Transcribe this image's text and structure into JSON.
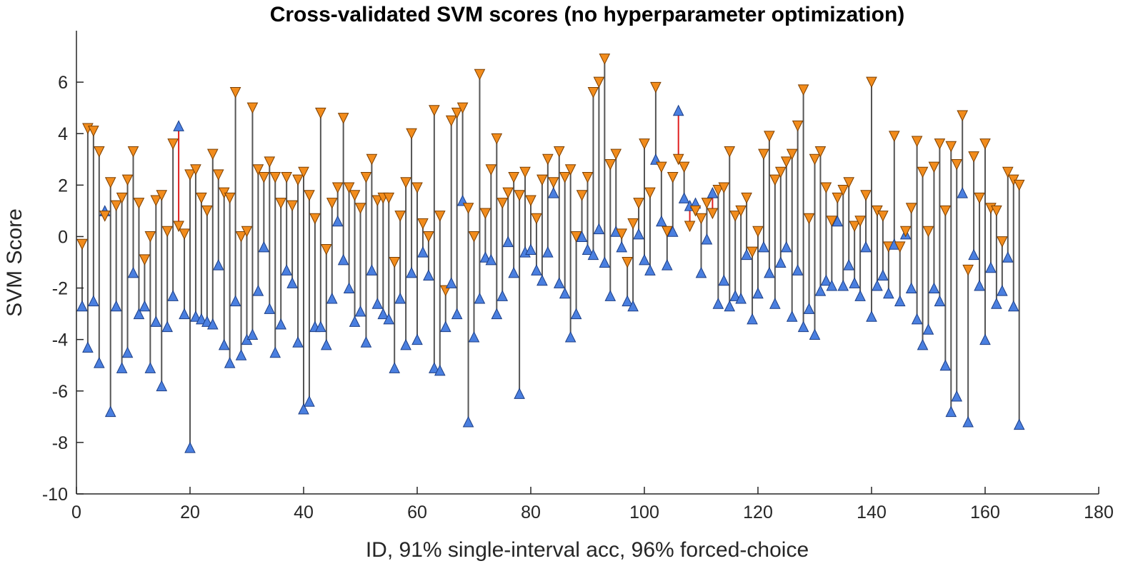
{
  "chart_data": {
    "type": "scatter",
    "title": "Cross-validated SVM scores (no hyperparameter optimization)",
    "xlabel": "ID,  91% single-interval acc,  96% forced-choice",
    "ylabel": "SVM Score",
    "xlim": [
      0,
      180
    ],
    "ylim": [
      -10,
      8
    ],
    "xticks": [
      0,
      20,
      40,
      60,
      80,
      100,
      120,
      140,
      160,
      180
    ],
    "yticks": [
      -10,
      -8,
      -6,
      -4,
      -2,
      0,
      2,
      4,
      6
    ],
    "grid": false,
    "legend": "none",
    "colors": {
      "class_a_marker": "#4a7fe0",
      "class_b_marker": "#f28c1c",
      "correct_stem": "#555555",
      "error_stem": "#e02020",
      "axis": "#262626"
    },
    "series_markers": {
      "class_a": "triangle-up",
      "class_b": "triangle-down"
    },
    "pairs": [
      {
        "id": 1,
        "a": -2.7,
        "b": -0.3
      },
      {
        "id": 2,
        "a": -4.3,
        "b": 4.2
      },
      {
        "id": 3,
        "a": -2.5,
        "b": 4.1
      },
      {
        "id": 4,
        "a": -4.9,
        "b": 3.3
      },
      {
        "id": 5,
        "a": 1.0,
        "b": 0.8
      },
      {
        "id": 6,
        "a": -6.8,
        "b": 2.1
      },
      {
        "id": 7,
        "a": -2.7,
        "b": 1.2
      },
      {
        "id": 8,
        "a": -5.1,
        "b": 1.5
      },
      {
        "id": 9,
        "a": -4.5,
        "b": 2.2
      },
      {
        "id": 10,
        "a": -1.4,
        "b": 3.3
      },
      {
        "id": 11,
        "a": -3.0,
        "b": 1.3
      },
      {
        "id": 12,
        "a": -2.7,
        "b": -0.9
      },
      {
        "id": 13,
        "a": -5.1,
        "b": 0.0
      },
      {
        "id": 14,
        "a": -3.3,
        "b": 1.4
      },
      {
        "id": 15,
        "a": -5.8,
        "b": 1.6
      },
      {
        "id": 16,
        "a": -3.5,
        "b": 0.2
      },
      {
        "id": 17,
        "a": -2.3,
        "b": 3.6
      },
      {
        "id": 18,
        "a": 4.3,
        "b": 0.4
      },
      {
        "id": 19,
        "a": -3.0,
        "b": 0.1
      },
      {
        "id": 20,
        "a": -8.2,
        "b": 2.4
      },
      {
        "id": 21,
        "a": -3.1,
        "b": 2.6
      },
      {
        "id": 22,
        "a": -3.2,
        "b": 1.5
      },
      {
        "id": 23,
        "a": -3.3,
        "b": 1.0
      },
      {
        "id": 24,
        "a": -3.4,
        "b": 3.2
      },
      {
        "id": 25,
        "a": -1.1,
        "b": 2.4
      },
      {
        "id": 26,
        "a": -4.2,
        "b": 1.7
      },
      {
        "id": 27,
        "a": -4.9,
        "b": 1.5
      },
      {
        "id": 28,
        "a": -2.5,
        "b": 5.6
      },
      {
        "id": 29,
        "a": -4.6,
        "b": 0.0
      },
      {
        "id": 30,
        "a": -4.0,
        "b": 0.2
      },
      {
        "id": 31,
        "a": -3.8,
        "b": 5.0
      },
      {
        "id": 32,
        "a": -2.1,
        "b": 2.6
      },
      {
        "id": 33,
        "a": -0.4,
        "b": 2.3
      },
      {
        "id": 34,
        "a": -2.8,
        "b": 2.9
      },
      {
        "id": 35,
        "a": -4.5,
        "b": 2.3
      },
      {
        "id": 36,
        "a": -3.4,
        "b": 1.3
      },
      {
        "id": 37,
        "a": -1.3,
        "b": 2.3
      },
      {
        "id": 38,
        "a": -1.8,
        "b": 1.2
      },
      {
        "id": 39,
        "a": -4.1,
        "b": 2.2
      },
      {
        "id": 40,
        "a": -6.7,
        "b": 2.5
      },
      {
        "id": 41,
        "a": -6.4,
        "b": 1.6
      },
      {
        "id": 42,
        "a": -3.5,
        "b": 0.7
      },
      {
        "id": 43,
        "a": -3.5,
        "b": 4.8
      },
      {
        "id": 44,
        "a": -4.2,
        "b": -0.5
      },
      {
        "id": 45,
        "a": -2.4,
        "b": 1.3
      },
      {
        "id": 46,
        "a": 0.6,
        "b": 1.9
      },
      {
        "id": 47,
        "a": -0.9,
        "b": 4.6
      },
      {
        "id": 48,
        "a": -2.0,
        "b": 1.9
      },
      {
        "id": 49,
        "a": -3.3,
        "b": 1.6
      },
      {
        "id": 50,
        "a": -2.9,
        "b": 1.1
      },
      {
        "id": 51,
        "a": -4.1,
        "b": 2.3
      },
      {
        "id": 52,
        "a": -1.3,
        "b": 3.0
      },
      {
        "id": 53,
        "a": -2.6,
        "b": 1.4
      },
      {
        "id": 54,
        "a": -3.0,
        "b": 1.5
      },
      {
        "id": 55,
        "a": -3.2,
        "b": 1.5
      },
      {
        "id": 56,
        "a": -5.1,
        "b": -1.0
      },
      {
        "id": 57,
        "a": -2.4,
        "b": 0.8
      },
      {
        "id": 58,
        "a": -4.2,
        "b": 2.1
      },
      {
        "id": 59,
        "a": -1.4,
        "b": 4.0
      },
      {
        "id": 60,
        "a": -4.0,
        "b": 1.9
      },
      {
        "id": 61,
        "a": -0.6,
        "b": 0.5
      },
      {
        "id": 62,
        "a": -1.5,
        "b": 0.0
      },
      {
        "id": 63,
        "a": -5.1,
        "b": 4.9
      },
      {
        "id": 64,
        "a": -5.2,
        "b": 0.8
      },
      {
        "id": 65,
        "a": -3.5,
        "b": -2.1
      },
      {
        "id": 66,
        "a": -1.8,
        "b": 4.5
      },
      {
        "id": 67,
        "a": -3.0,
        "b": 4.8
      },
      {
        "id": 68,
        "a": 1.4,
        "b": 5.0
      },
      {
        "id": 69,
        "a": -7.2,
        "b": 1.1
      },
      {
        "id": 70,
        "a": -3.9,
        "b": 0.0
      },
      {
        "id": 71,
        "a": -2.4,
        "b": 6.3
      },
      {
        "id": 72,
        "a": -0.8,
        "b": 0.9
      },
      {
        "id": 73,
        "a": -0.9,
        "b": 2.6
      },
      {
        "id": 74,
        "a": -3.0,
        "b": 3.8
      },
      {
        "id": 75,
        "a": -2.3,
        "b": 1.3
      },
      {
        "id": 76,
        "a": -0.2,
        "b": 1.7
      },
      {
        "id": 77,
        "a": -1.4,
        "b": 2.3
      },
      {
        "id": 78,
        "a": -6.1,
        "b": 1.6
      },
      {
        "id": 79,
        "a": -0.6,
        "b": 2.5
      },
      {
        "id": 80,
        "a": -0.5,
        "b": 1.4
      },
      {
        "id": 81,
        "a": -1.3,
        "b": 0.7
      },
      {
        "id": 82,
        "a": -1.7,
        "b": 2.2
      },
      {
        "id": 83,
        "a": -0.6,
        "b": 3.0
      },
      {
        "id": 84,
        "a": 1.7,
        "b": 2.1
      },
      {
        "id": 85,
        "a": -1.8,
        "b": 3.3
      },
      {
        "id": 86,
        "a": -2.2,
        "b": 2.3
      },
      {
        "id": 87,
        "a": -3.9,
        "b": 2.6
      },
      {
        "id": 88,
        "a": -3.0,
        "b": 0.0
      },
      {
        "id": 89,
        "a": 0.0,
        "b": 1.6
      },
      {
        "id": 90,
        "a": -0.5,
        "b": 2.3
      },
      {
        "id": 91,
        "a": -0.7,
        "b": 5.6
      },
      {
        "id": 92,
        "a": 0.3,
        "b": 6.0
      },
      {
        "id": 93,
        "a": -1.0,
        "b": 6.9
      },
      {
        "id": 94,
        "a": -2.3,
        "b": 2.8
      },
      {
        "id": 95,
        "a": 0.2,
        "b": 3.2
      },
      {
        "id": 96,
        "a": -0.4,
        "b": 0.1
      },
      {
        "id": 97,
        "a": -2.5,
        "b": -1.0
      },
      {
        "id": 98,
        "a": -2.7,
        "b": 0.5
      },
      {
        "id": 99,
        "a": 0.1,
        "b": 1.3
      },
      {
        "id": 100,
        "a": -0.9,
        "b": 3.6
      },
      {
        "id": 101,
        "a": -1.3,
        "b": 1.7
      },
      {
        "id": 102,
        "a": 3.0,
        "b": 5.8
      },
      {
        "id": 103,
        "a": 0.6,
        "b": 2.7
      },
      {
        "id": 104,
        "a": -1.1,
        "b": 0.2
      },
      {
        "id": 105,
        "a": 0.2,
        "b": 2.3
      },
      {
        "id": 106,
        "a": 4.9,
        "b": 3.0
      },
      {
        "id": 107,
        "a": 1.5,
        "b": 2.7
      },
      {
        "id": 108,
        "a": 1.2,
        "b": 0.4
      },
      {
        "id": 109,
        "a": 1.3,
        "b": 1.0
      },
      {
        "id": 110,
        "a": -1.4,
        "b": 0.7
      },
      {
        "id": 111,
        "a": -0.1,
        "b": 1.3
      },
      {
        "id": 112,
        "a": 1.7,
        "b": 0.9
      },
      {
        "id": 113,
        "a": -2.6,
        "b": 1.8
      },
      {
        "id": 114,
        "a": -1.7,
        "b": 1.9
      },
      {
        "id": 115,
        "a": -2.7,
        "b": 3.3
      },
      {
        "id": 116,
        "a": -2.3,
        "b": 0.8
      },
      {
        "id": 117,
        "a": -2.4,
        "b": 1.0
      },
      {
        "id": 118,
        "a": -0.7,
        "b": 1.5
      },
      {
        "id": 119,
        "a": -3.2,
        "b": -0.6
      },
      {
        "id": 120,
        "a": -2.2,
        "b": 0.2
      },
      {
        "id": 121,
        "a": -0.4,
        "b": 3.2
      },
      {
        "id": 122,
        "a": -1.4,
        "b": 3.9
      },
      {
        "id": 123,
        "a": -2.6,
        "b": 2.2
      },
      {
        "id": 124,
        "a": -1.0,
        "b": 2.5
      },
      {
        "id": 125,
        "a": -0.4,
        "b": 2.9
      },
      {
        "id": 126,
        "a": -3.1,
        "b": 3.2
      },
      {
        "id": 127,
        "a": -1.3,
        "b": 4.3
      },
      {
        "id": 128,
        "a": -3.5,
        "b": 5.7
      },
      {
        "id": 129,
        "a": -2.8,
        "b": 0.7
      },
      {
        "id": 130,
        "a": -3.8,
        "b": 3.0
      },
      {
        "id": 131,
        "a": -2.1,
        "b": 3.3
      },
      {
        "id": 132,
        "a": -1.7,
        "b": 1.9
      },
      {
        "id": 133,
        "a": -1.9,
        "b": 0.6
      },
      {
        "id": 134,
        "a": 0.6,
        "b": 1.5
      },
      {
        "id": 135,
        "a": -1.9,
        "b": 1.8
      },
      {
        "id": 136,
        "a": -1.1,
        "b": 2.1
      },
      {
        "id": 137,
        "a": -1.8,
        "b": 0.4
      },
      {
        "id": 138,
        "a": -2.3,
        "b": 0.6
      },
      {
        "id": 139,
        "a": -0.4,
        "b": 1.6
      },
      {
        "id": 140,
        "a": -3.1,
        "b": 6.0
      },
      {
        "id": 141,
        "a": -1.9,
        "b": 1.0
      },
      {
        "id": 142,
        "a": -1.5,
        "b": 0.8
      },
      {
        "id": 143,
        "a": -2.2,
        "b": -0.4
      },
      {
        "id": 144,
        "a": -0.3,
        "b": 3.9
      },
      {
        "id": 145,
        "a": -2.5,
        "b": -0.4
      },
      {
        "id": 146,
        "a": 0.1,
        "b": 0.2
      },
      {
        "id": 147,
        "a": -2.0,
        "b": 1.1
      },
      {
        "id": 148,
        "a": -3.2,
        "b": 3.7
      },
      {
        "id": 149,
        "a": -4.2,
        "b": 2.5
      },
      {
        "id": 150,
        "a": -3.6,
        "b": 0.2
      },
      {
        "id": 151,
        "a": -2.0,
        "b": 2.7
      },
      {
        "id": 152,
        "a": -2.5,
        "b": 3.6
      },
      {
        "id": 153,
        "a": -5.0,
        "b": 1.0
      },
      {
        "id": 154,
        "a": -6.8,
        "b": 3.5
      },
      {
        "id": 155,
        "a": -6.2,
        "b": 2.8
      },
      {
        "id": 156,
        "a": 1.7,
        "b": 4.7
      },
      {
        "id": 157,
        "a": -7.2,
        "b": -1.3
      },
      {
        "id": 158,
        "a": -0.7,
        "b": 3.1
      },
      {
        "id": 159,
        "a": -1.9,
        "b": 1.5
      },
      {
        "id": 160,
        "a": -4.0,
        "b": 3.6
      },
      {
        "id": 161,
        "a": -1.2,
        "b": 1.1
      },
      {
        "id": 162,
        "a": -2.6,
        "b": 1.0
      },
      {
        "id": 163,
        "a": -2.1,
        "b": -0.2
      },
      {
        "id": 164,
        "a": -0.8,
        "b": 2.5
      },
      {
        "id": 165,
        "a": -2.7,
        "b": 2.2
      },
      {
        "id": 166,
        "a": -7.3,
        "b": 2.0
      }
    ]
  }
}
